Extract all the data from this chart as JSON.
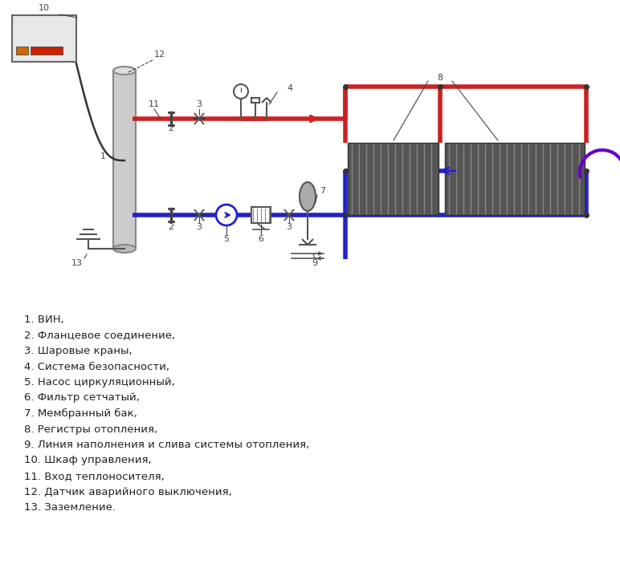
{
  "bg_color": "#ffffff",
  "red_pipe_color": "#cc2222",
  "blue_pipe_color": "#2222cc",
  "pipe_lw": 4,
  "legend_lines": [
    "1. ВИН,",
    "2. Фланцевое соединение,",
    "3. Шаровые краны,",
    "4. Система безопасности,",
    "5. Насос циркуляционный,",
    "6. Фильтр сетчатый,",
    "7. Мембранный бак,",
    "8. Регистры отопления,",
    "9. Линия наполнения и слива системы отопления,",
    "10. Шкаф управления,",
    "11. Вход теплоносителя,",
    "12. Датчик аварийного выключения,",
    "13. Заземление."
  ]
}
